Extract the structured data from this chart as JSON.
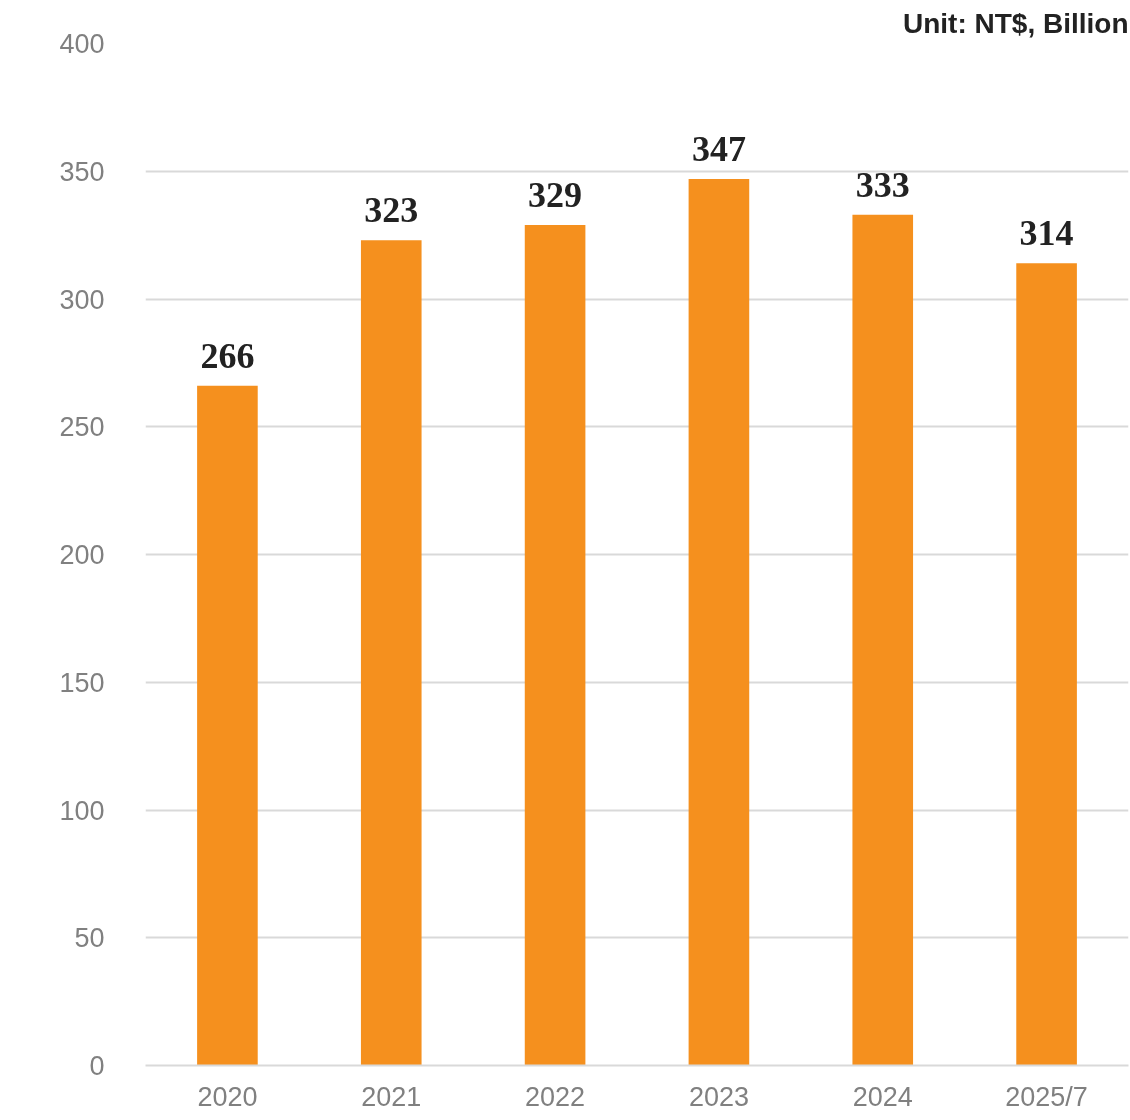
{
  "chart_data": {
    "type": "bar",
    "categories": [
      "2020",
      "2021",
      "2022",
      "2023",
      "2024",
      "2025/7"
    ],
    "values": [
      266,
      323,
      329,
      347,
      333,
      314
    ],
    "color": "#f5901e",
    "ylim": [
      0,
      400
    ],
    "yticks": [
      0,
      50,
      100,
      150,
      200,
      250,
      300,
      350,
      400
    ],
    "grid": "y",
    "data_labels": true,
    "annotations": [
      "Unit: NT$, Billion"
    ]
  }
}
